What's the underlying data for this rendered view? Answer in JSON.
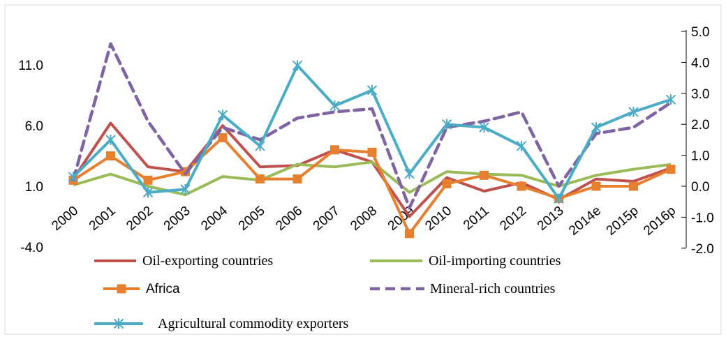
{
  "chart_data": {
    "type": "line",
    "title": "",
    "xlabel": "",
    "ylabel": "",
    "categories": [
      "2000",
      "2001",
      "2002",
      "2003",
      "2004",
      "2005",
      "2006",
      "2007",
      "2008",
      "2009",
      "2010",
      "2011",
      "2012",
      "2013",
      "2014e",
      "2015p",
      "2016p"
    ],
    "left_axis": {
      "ylim": [
        -4,
        11
      ],
      "ticks": [
        "11.0",
        "6.0",
        "1.0",
        "-4.0"
      ],
      "tick_values": [
        11,
        6,
        1,
        -4
      ]
    },
    "right_axis": {
      "ylim": [
        -2,
        5
      ],
      "ticks": [
        "5.0",
        "4.0",
        "3.0",
        "2.0",
        "1.0",
        "0.0",
        "-1.0",
        "-2.0"
      ],
      "tick_values": [
        5,
        4,
        3,
        2,
        1,
        0,
        -1,
        -2
      ]
    },
    "grid": false,
    "legend_position": "bottom",
    "series": [
      {
        "name": "Oil-exporting countries",
        "axis": "left",
        "color": "#C0504D",
        "style": "solid",
        "marker": "none",
        "values": [
          1.6,
          6.2,
          2.6,
          2.2,
          6.0,
          2.6,
          2.7,
          4.0,
          3.0,
          -1.5,
          1.7,
          0.6,
          1.3,
          -0.1,
          1.6,
          1.4,
          2.5
        ]
      },
      {
        "name": "Oil-importing countries",
        "axis": "left",
        "color": "#9BBB59",
        "style": "solid",
        "marker": "none",
        "values": [
          1.1,
          2.0,
          1.0,
          0.3,
          1.8,
          1.5,
          2.8,
          2.6,
          3.0,
          0.5,
          2.2,
          2.0,
          1.9,
          1.0,
          1.9,
          2.4,
          2.8
        ]
      },
      {
        "name": "Africa",
        "axis": "left",
        "color": "#E67F2E",
        "style": "solid",
        "marker": "square",
        "values": [
          1.5,
          3.5,
          1.5,
          2.2,
          5.0,
          1.6,
          1.6,
          4.0,
          3.8,
          -2.9,
          1.2,
          1.9,
          1.0,
          0.0,
          1.0,
          1.0,
          2.4
        ]
      },
      {
        "name": "Mineral-rich countries",
        "axis": "right",
        "color": "#8064A2",
        "style": "dashed",
        "marker": "none",
        "values": [
          0.2,
          4.6,
          2.1,
          0.4,
          1.9,
          1.5,
          2.2,
          2.4,
          2.5,
          -0.7,
          1.9,
          2.1,
          2.4,
          0.0,
          1.7,
          1.9,
          2.7
        ]
      },
      {
        "name": "Agricultural commodity exporters",
        "axis": "right",
        "color": "#4BACC6",
        "style": "solid",
        "marker": "asterisk",
        "values": [
          0.3,
          1.5,
          -0.2,
          -0.1,
          2.3,
          1.3,
          3.9,
          2.6,
          3.1,
          0.4,
          2.0,
          1.9,
          1.3,
          -0.4,
          1.9,
          2.4,
          2.8
        ]
      }
    ],
    "legend": [
      {
        "label": "Oil-exporting countries",
        "series": 0,
        "font": "serif"
      },
      {
        "label": "Oil-importing countries",
        "series": 1,
        "font": "serif"
      },
      {
        "label": "Africa",
        "series": 2,
        "font": "sans"
      },
      {
        "label": "Mineral-rich countries",
        "series": 3,
        "font": "serif"
      },
      {
        "label": "Agricultural commodity exporters",
        "series": 4,
        "font": "serif"
      }
    ]
  }
}
